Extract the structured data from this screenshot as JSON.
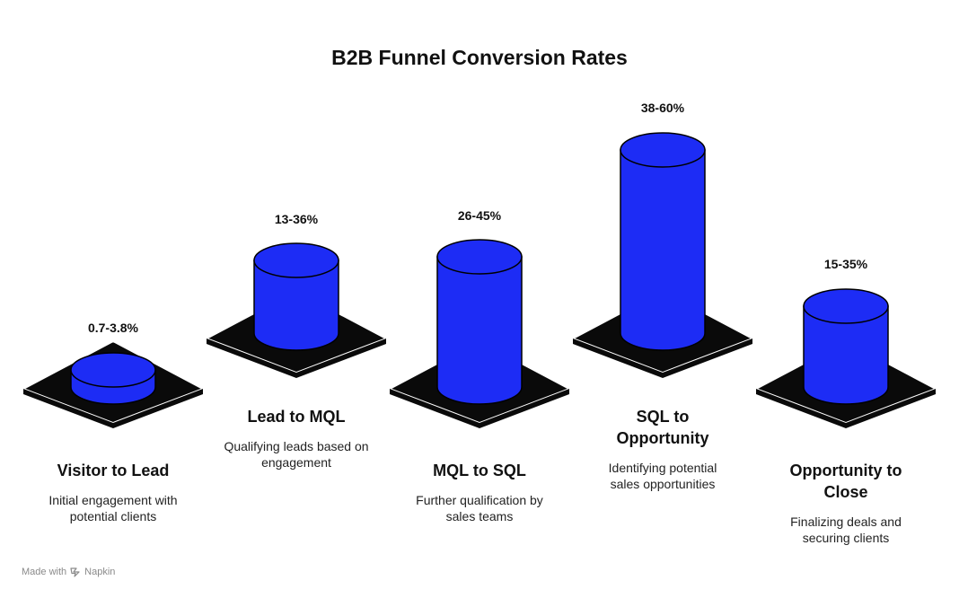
{
  "title": "B2B Funnel Conversion Rates",
  "stages": [
    {
      "rate": "0.7-3.8%",
      "name": "Visitor to Lead",
      "description": "Initial engagement with potential clients"
    },
    {
      "rate": "13-36%",
      "name": "Lead to MQL",
      "description": "Qualifying leads based on engagement"
    },
    {
      "rate": "26-45%",
      "name": "MQL to SQL",
      "description": "Further qualification by sales teams"
    },
    {
      "rate": "38-60%",
      "name": "SQL to Opportunity",
      "description": "Identifying potential sales opportunities"
    },
    {
      "rate": "15-35%",
      "name": "Opportunity to Close",
      "description": "Finalizing deals and securing clients"
    }
  ],
  "colors": {
    "cylinder": "#1d2cf5",
    "base": "#0a0a0a",
    "text": "#111111"
  },
  "footer": {
    "prefix": "Made with",
    "brand": "Napkin",
    "icon": "napkin-logo-icon"
  }
}
